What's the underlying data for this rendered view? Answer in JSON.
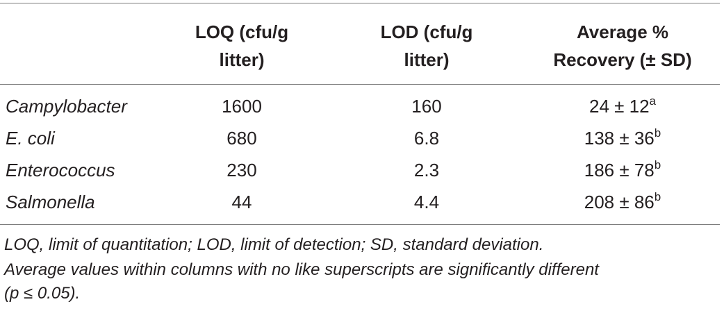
{
  "table": {
    "headers": [
      [
        "LOQ (cfu/g",
        "litter)"
      ],
      [
        "LOD (cfu/g",
        "litter)"
      ],
      [
        "Average %",
        "Recovery (± SD)"
      ]
    ],
    "rows": [
      {
        "organism": "Campylobacter",
        "loq": "1600",
        "lod": "160",
        "recovery": "24 ± 12",
        "sup": "a"
      },
      {
        "organism": "E. coli",
        "loq": "680",
        "lod": "6.8",
        "recovery": "138 ± 36",
        "sup": "b"
      },
      {
        "organism": "Enterococcus",
        "loq": "230",
        "lod": "2.3",
        "recovery": "186 ± 78",
        "sup": "b"
      },
      {
        "organism": "Salmonella",
        "loq": "44",
        "lod": "4.4",
        "recovery": "208 ± 86",
        "sup": "b"
      }
    ]
  },
  "footnotes": [
    "LOQ, limit of quantitation; LOD, limit of detection; SD, standard deviation.",
    "Average values within columns with no like superscripts are significantly different",
    "(p ≤ 0.05)."
  ]
}
